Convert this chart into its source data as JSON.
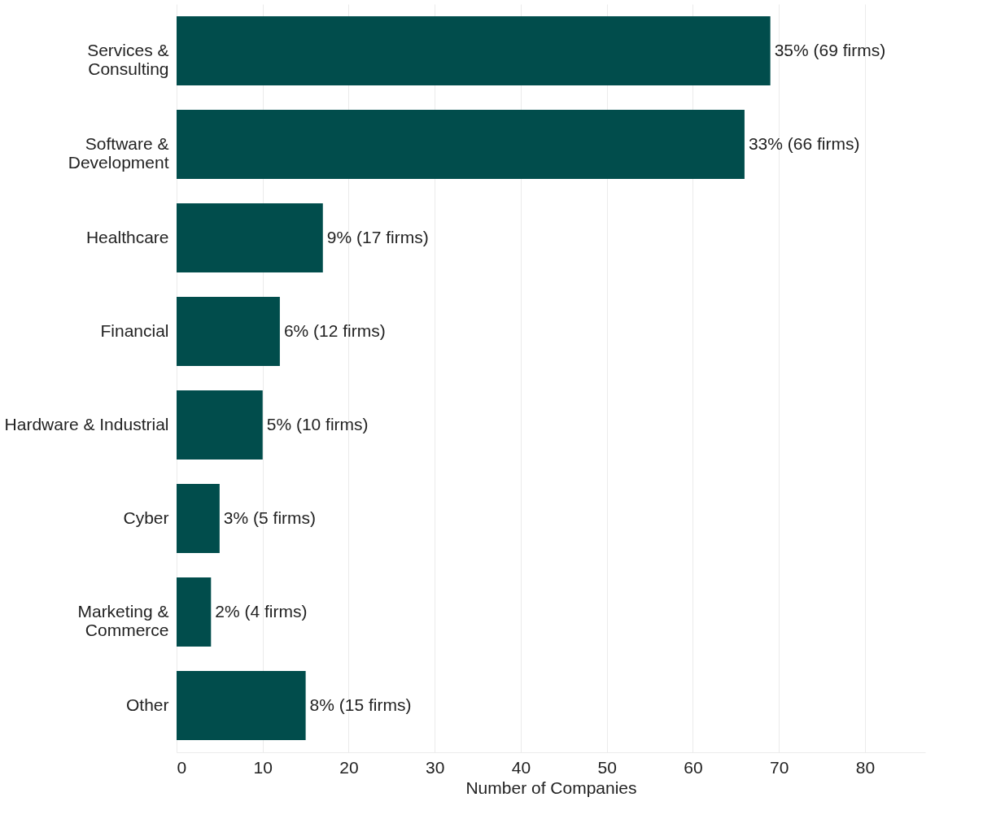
{
  "chart_data": {
    "type": "bar",
    "orientation": "horizontal",
    "xlabel": "Number of Companies",
    "categories": [
      "Services &\nConsulting",
      "Software &\nDevelopment",
      "Healthcare",
      "Financial",
      "Hardware & Industrial",
      "Cyber",
      "Marketing &\nCommerce",
      "Other"
    ],
    "values": [
      69,
      66,
      17,
      12,
      10,
      5,
      4,
      15
    ],
    "value_labels": [
      "35% (69 firms)",
      "33% (66 firms)",
      "9% (17 firms)",
      "6% (12 firms)",
      "5% (10 firms)",
      "3% (5 firms)",
      "2% (4 firms)",
      "8% (15 firms)"
    ],
    "color": "#014d4c",
    "xlim": [
      0,
      87
    ],
    "xticks": [
      0,
      10,
      20,
      30,
      40,
      50,
      60,
      70,
      80
    ],
    "grid": "x"
  }
}
